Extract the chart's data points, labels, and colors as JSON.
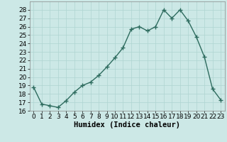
{
  "title": "",
  "xlabel": "Humidex (Indice chaleur)",
  "ylabel": "",
  "x": [
    0,
    1,
    2,
    3,
    4,
    5,
    6,
    7,
    8,
    9,
    10,
    11,
    12,
    13,
    14,
    15,
    16,
    17,
    18,
    19,
    20,
    21,
    22,
    23
  ],
  "y": [
    18.8,
    16.8,
    16.6,
    16.4,
    17.2,
    18.2,
    19.0,
    19.4,
    20.2,
    21.2,
    22.3,
    23.5,
    25.7,
    26.0,
    25.5,
    26.0,
    28.0,
    27.0,
    28.0,
    26.7,
    24.8,
    22.4,
    18.6,
    17.3
  ],
  "line_color": "#2d6b5e",
  "marker": "+",
  "marker_size": 4,
  "marker_lw": 1.0,
  "line_width": 1.0,
  "bg_color": "#cce8e6",
  "grid_color": "#afd4d1",
  "ylim": [
    16,
    29
  ],
  "xlim": [
    -0.5,
    23.5
  ],
  "yticks": [
    16,
    17,
    18,
    19,
    20,
    21,
    22,
    23,
    24,
    25,
    26,
    27,
    28
  ],
  "xticks": [
    0,
    1,
    2,
    3,
    4,
    5,
    6,
    7,
    8,
    9,
    10,
    11,
    12,
    13,
    14,
    15,
    16,
    17,
    18,
    19,
    20,
    21,
    22,
    23
  ],
  "tick_fontsize": 6.5,
  "label_fontsize": 7.5,
  "label_fontweight": "bold"
}
